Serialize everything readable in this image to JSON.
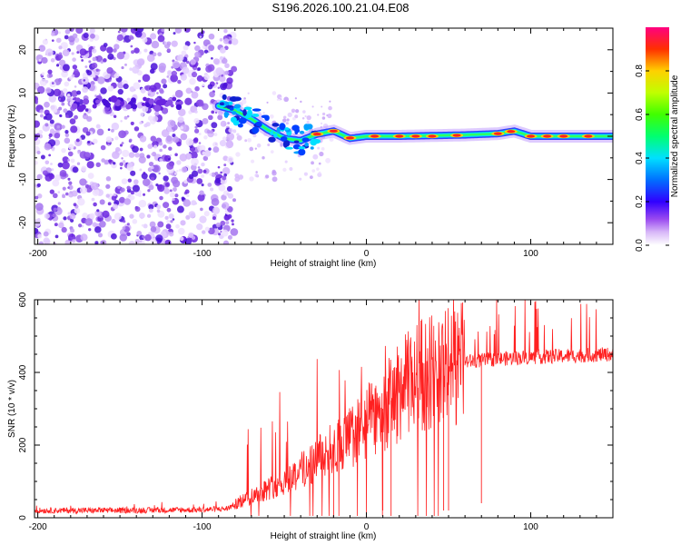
{
  "title": "S196.2026.100.21.04.E08",
  "chart_data": [
    {
      "type": "heatmap",
      "title": "S196.2026.100.21.04.E08",
      "xlabel": "Height of straight line (km)",
      "ylabel": "Frequency (Hz)",
      "xlim": [
        -202,
        150
      ],
      "ylim": [
        -25,
        25
      ],
      "x_ticks": [
        -200,
        -100,
        0,
        100
      ],
      "y_ticks": [
        -20,
        -10,
        0,
        10,
        20
      ],
      "colorbar": {
        "label": "Normalized spectral amplitude",
        "range": [
          0,
          1
        ],
        "ticks": [
          0.0,
          0.2,
          0.4,
          0.6,
          0.8
        ],
        "tick_labels": [
          "0.0",
          "0.2",
          "0.4",
          "0.6",
          "0.8"
        ]
      },
      "ridge": {
        "description_points_x": [
          -90,
          -80,
          -70,
          -60,
          -50,
          -40,
          -30,
          -20,
          -10,
          0,
          20,
          60,
          80,
          90,
          100,
          150
        ],
        "description_points_y": [
          7,
          6,
          4,
          1.5,
          -0.5,
          -1,
          0.5,
          1.2,
          -0.5,
          0,
          0,
          0.3,
          0.6,
          1.2,
          0,
          0
        ]
      }
    },
    {
      "type": "line",
      "xlabel": "Height of straight line (km)",
      "ylabel": "SNR (10 * v/v)",
      "xlim": [
        -202,
        150
      ],
      "ylim": [
        0,
        600
      ],
      "x_ticks": [
        -200,
        -100,
        0,
        100
      ],
      "y_ticks": [
        0,
        200,
        400,
        600
      ],
      "series": [
        {
          "name": "SNR",
          "color": "#ff2020",
          "envelope_x": [
            -202,
            -150,
            -100,
            -85,
            -70,
            -50,
            -30,
            -10,
            10,
            30,
            60,
            90,
            120,
            150
          ],
          "envelope_y": [
            20,
            20,
            22,
            25,
            60,
            100,
            160,
            220,
            300,
            390,
            430,
            440,
            445,
            450
          ]
        }
      ]
    }
  ]
}
